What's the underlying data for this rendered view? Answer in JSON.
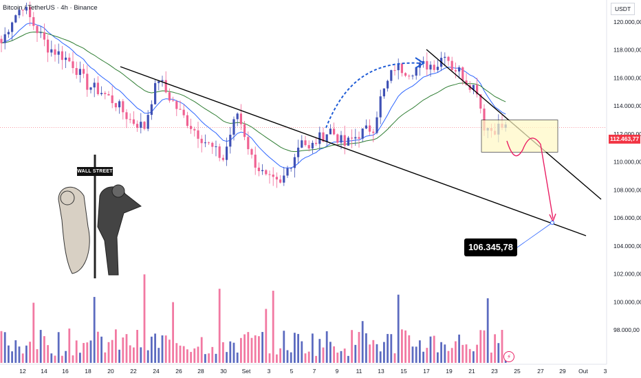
{
  "header": {
    "symbol_line": "Bitcoin / TetherUS · 4h · Binance",
    "currency": "USDT"
  },
  "price_axis": {
    "ticks": [
      "120.000,00",
      "118.000,00",
      "116.000,00",
      "114.000,00",
      "112.000,00",
      "110.000,00",
      "108.000,00",
      "106.000,00",
      "104.000,00",
      "102.000,00",
      "100.000,00",
      "98.000,00"
    ],
    "last_price_label": "112.463,77"
  },
  "time_axis": {
    "ticks": [
      "12",
      "14",
      "16",
      "18",
      "20",
      "22",
      "24",
      "26",
      "28",
      "30",
      "Set",
      "3",
      "5",
      "7",
      "9",
      "11",
      "13",
      "15",
      "17",
      "19",
      "21",
      "23",
      "25",
      "27",
      "29",
      "Out",
      "3"
    ]
  },
  "annotations": {
    "target_label": "106.345,78",
    "sign_label": "WALL STREET"
  },
  "colors": {
    "up": "#3f51b5",
    "down": "#f06292",
    "ema_fast": "#2962ff",
    "ema_slow": "#2e7d32",
    "trendline": "#000000",
    "forecast": "#e91e63",
    "arrow_dashed": "#1e5bd6",
    "zone_fill": "#fff9c4",
    "last_price": "#f23645"
  },
  "chart_data": {
    "type": "candlestick",
    "title": "Bitcoin / TetherUS · 4h · Binance",
    "y_range": [
      96500,
      121600
    ],
    "y_ticks": [
      120000,
      118000,
      116000,
      114000,
      112000,
      110000,
      108000,
      106000,
      104000,
      102000,
      100000,
      98000
    ],
    "x_tick_labels": [
      "12",
      "14",
      "16",
      "18",
      "20",
      "22",
      "24",
      "26",
      "28",
      "30",
      "Set",
      "3",
      "5",
      "7",
      "9",
      "11",
      "13",
      "15",
      "17",
      "19",
      "21",
      "23",
      "25",
      "27",
      "29",
      "Out",
      "3"
    ],
    "price_path_anchors": [
      [
        0,
        118500
      ],
      [
        3,
        120200
      ],
      [
        6,
        121200
      ],
      [
        9,
        119800
      ],
      [
        13,
        118200
      ],
      [
        17,
        117600
      ],
      [
        20,
        117000
      ],
      [
        24,
        115500
      ],
      [
        28,
        115000
      ],
      [
        32,
        114200
      ],
      [
        36,
        113000
      ],
      [
        40,
        112500
      ],
      [
        42,
        114500
      ],
      [
        44,
        116000
      ],
      [
        46,
        115000
      ],
      [
        50,
        113500
      ],
      [
        54,
        112300
      ],
      [
        58,
        111200
      ],
      [
        62,
        110200
      ],
      [
        64,
        112000
      ],
      [
        66,
        113500
      ],
      [
        68,
        112000
      ],
      [
        70,
        110300
      ],
      [
        74,
        108800
      ],
      [
        78,
        108300
      ],
      [
        80,
        109500
      ],
      [
        82,
        110500
      ],
      [
        84,
        111800
      ],
      [
        86,
        110800
      ],
      [
        88,
        111500
      ],
      [
        92,
        112300
      ],
      [
        96,
        111200
      ],
      [
        100,
        112000
      ],
      [
        104,
        112500
      ],
      [
        106,
        114500
      ],
      [
        110,
        116800
      ],
      [
        114,
        116500
      ],
      [
        118,
        116900
      ],
      [
        122,
        117000
      ],
      [
        124,
        117900
      ],
      [
        126,
        116800
      ],
      [
        128,
        116500
      ],
      [
        130,
        115800
      ],
      [
        133,
        115200
      ],
      [
        135,
        112600
      ],
      [
        137,
        112300
      ],
      [
        139,
        112500
      ],
      [
        141,
        112463
      ]
    ],
    "last_price": 112463.77,
    "moving_averages": [
      {
        "type": "fast",
        "color": "#2962ff"
      },
      {
        "type": "slow",
        "color": "#2e7d32"
      }
    ],
    "trendlines": [
      {
        "from": [
          175,
          97
        ],
        "to": [
          852,
          343
        ]
      },
      {
        "from": [
          620,
          72
        ],
        "to": [
          874,
          290
        ]
      }
    ],
    "consolidation_zone": {
      "price_high": 113000,
      "price_low": 110700
    },
    "forecast_target": 106345.78,
    "volume": "present (bars colored by candle direction)"
  }
}
